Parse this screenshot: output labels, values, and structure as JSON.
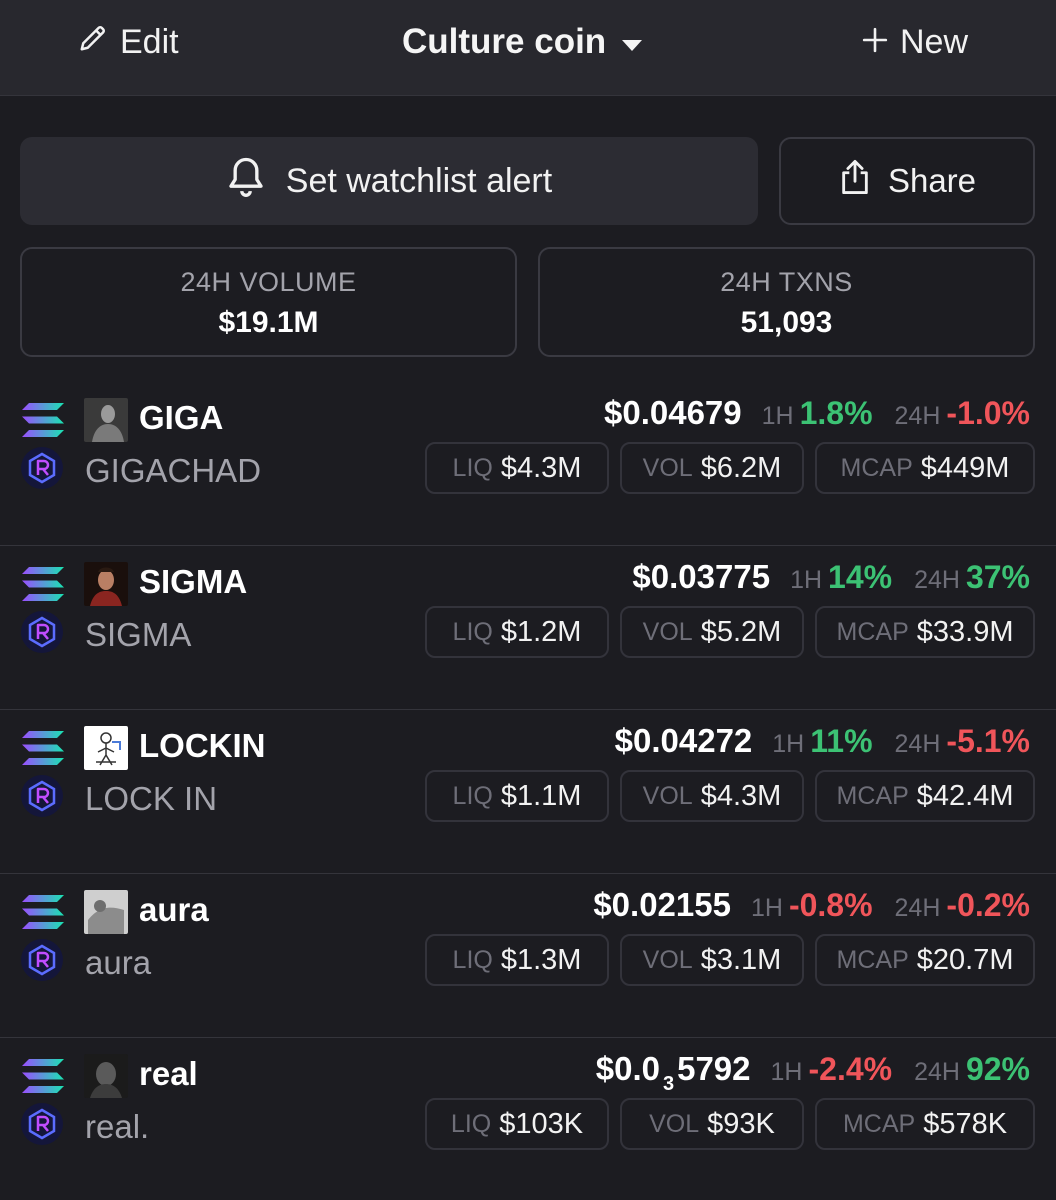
{
  "header": {
    "edit_label": "Edit",
    "title": "Culture coin",
    "new_label": "New"
  },
  "actions": {
    "alert_label": "Set watchlist alert",
    "share_label": "Share"
  },
  "stats": {
    "volume_label": "24H VOLUME",
    "volume_value": "$19.1M",
    "txns_label": "24H TXNS",
    "txns_value": "51,093"
  },
  "labels": {
    "h1": "1H",
    "h24": "24H",
    "liq": "LIQ",
    "vol": "VOL",
    "mcap": "MCAP"
  },
  "colors": {
    "up": "#3cc274",
    "down": "#f0555a",
    "background": "#1c1c21"
  },
  "tokens": [
    {
      "symbol": "GIGA",
      "name": "GIGACHAD",
      "price": "$0.04679",
      "change_1h": "1.8%",
      "change_1h_dir": "up",
      "change_24h": "-1.0%",
      "change_24h_dir": "down",
      "liq": "$4.3M",
      "vol": "$6.2M",
      "mcap": "$449M",
      "avatar": "gigachad-avatar"
    },
    {
      "symbol": "SIGMA",
      "name": "SIGMA",
      "price": "$0.03775",
      "change_1h": "14%",
      "change_1h_dir": "up",
      "change_24h": "37%",
      "change_24h_dir": "up",
      "liq": "$1.2M",
      "vol": "$5.2M",
      "mcap": "$33.9M",
      "avatar": "sigma-avatar"
    },
    {
      "symbol": "LOCKIN",
      "name": "LOCK IN",
      "price": "$0.04272",
      "change_1h": "11%",
      "change_1h_dir": "up",
      "change_24h": "-5.1%",
      "change_24h_dir": "down",
      "liq": "$1.1M",
      "vol": "$4.3M",
      "mcap": "$42.4M",
      "avatar": "lockin-avatar"
    },
    {
      "symbol": "aura",
      "name": "aura",
      "price": "$0.02155",
      "change_1h": "-0.8%",
      "change_1h_dir": "down",
      "change_24h": "-0.2%",
      "change_24h_dir": "down",
      "liq": "$1.3M",
      "vol": "$3.1M",
      "mcap": "$20.7M",
      "avatar": "aura-avatar"
    },
    {
      "symbol": "real",
      "name": "real.",
      "price_prefix": "$0.0",
      "price_zeros": "3",
      "price_digits": "5792",
      "change_1h": "-2.4%",
      "change_1h_dir": "down",
      "change_24h": "92%",
      "change_24h_dir": "up",
      "liq": "$103K",
      "vol": "$93K",
      "mcap": "$578K",
      "avatar": "real-avatar"
    }
  ]
}
